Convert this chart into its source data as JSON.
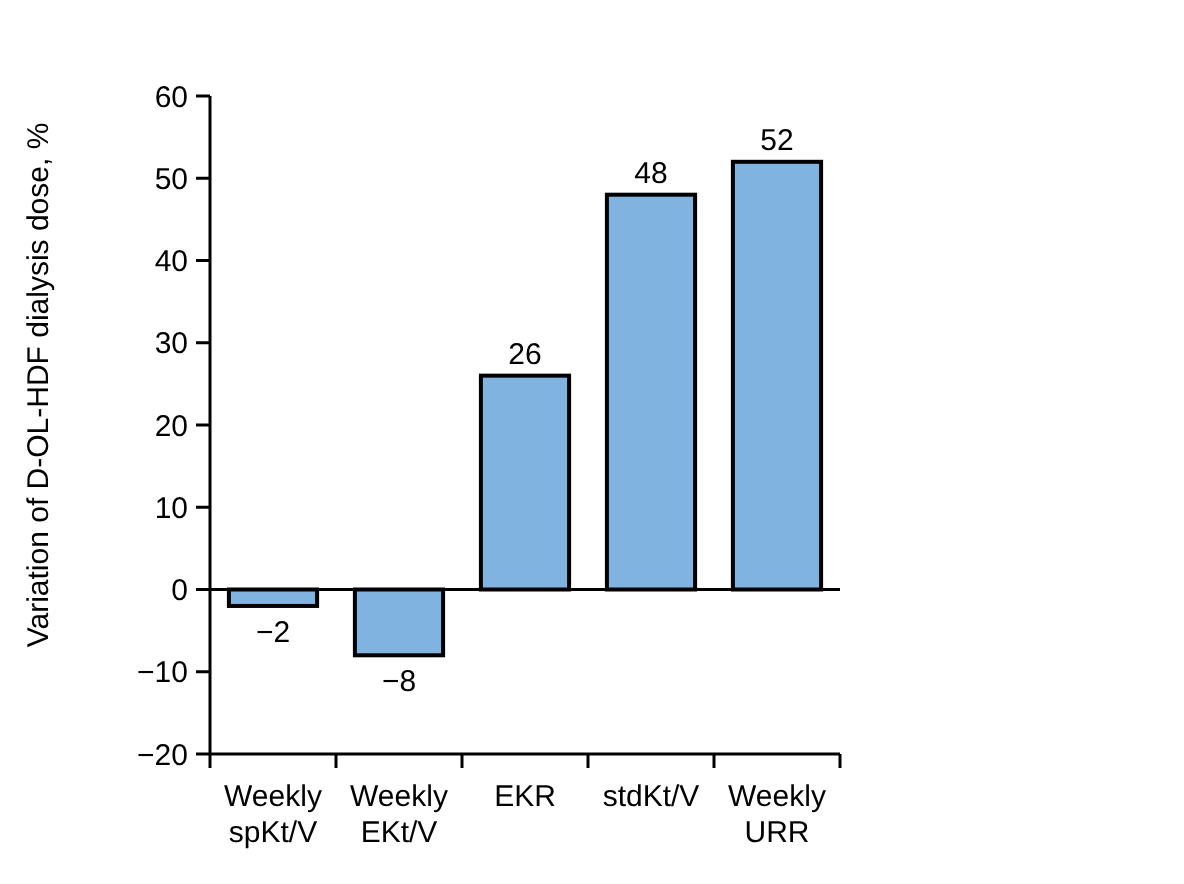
{
  "chart_data": {
    "type": "bar",
    "ylabel": "Variation of D-OL-HDF dialysis dose, %",
    "categories": [
      "Weekly spKt/V",
      "Weekly EKt/V",
      "EKR",
      "stdKt/V",
      "Weekly URR"
    ],
    "values": [
      -2,
      -8,
      26,
      48,
      52
    ],
    "value_labels": [
      "−2",
      "−8",
      "26",
      "48",
      "52"
    ],
    "color": "#80b3e0",
    "ylim": [
      -20,
      60
    ],
    "yticks": [
      {
        "value": -20,
        "label": "−20"
      },
      {
        "value": -10,
        "label": "−10"
      },
      0,
      10,
      20,
      30,
      40,
      50,
      60
    ]
  }
}
